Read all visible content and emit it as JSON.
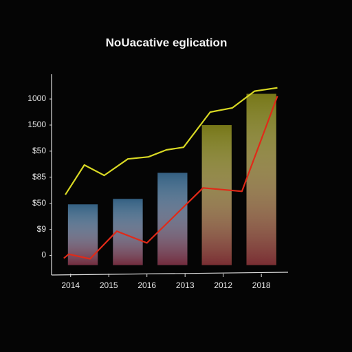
{
  "chart_data": {
    "type": "bar_line",
    "title": "NoUacative eglication",
    "xlim": [
      -0.5,
      5.7
    ],
    "xticks": [
      {
        "value": 0,
        "label": "2014"
      },
      {
        "value": 1,
        "label": "2015"
      },
      {
        "value": 2,
        "label": "2016"
      },
      {
        "value": 3,
        "label": "2013"
      },
      {
        "value": 4,
        "label": "2012"
      },
      {
        "value": 5,
        "label": "2018"
      }
    ],
    "ylim": [
      -0.75,
      6.95
    ],
    "yticks": [
      {
        "value": 0,
        "label": "0"
      },
      {
        "value": 1,
        "label": "$9"
      },
      {
        "value": 2,
        "label": "$50"
      },
      {
        "value": 3,
        "label": "$85"
      },
      {
        "value": 4,
        "label": "$50"
      },
      {
        "value": 5,
        "label": "1500"
      },
      {
        "value": 6,
        "label": "1000"
      }
    ],
    "bars": {
      "x": [
        0.32,
        1.5,
        2.67,
        3.83,
        5.0
      ],
      "values": [
        1.96,
        2.17,
        3.17,
        5.0,
        6.2
      ],
      "width": 0.78,
      "colors": [
        "#3d7199",
        "#3d7199",
        "#3d7199",
        "#8c8c1c",
        "#8c8c1c"
      ]
    },
    "series": [
      {
        "color": "#d9d924",
        "x": [
          -0.14,
          0.36,
          0.88,
          1.5,
          2.04,
          2.51,
          2.96,
          3.66,
          4.24,
          4.82,
          5.42
        ],
        "values": [
          2.33,
          3.47,
          3.07,
          3.7,
          3.78,
          4.05,
          4.15,
          5.5,
          5.66,
          6.3,
          6.43
        ]
      },
      {
        "color": "#e02a18",
        "x": [
          -0.18,
          -0.05,
          0.51,
          1.21,
          2.0,
          3.47,
          4.49,
          5.42
        ],
        "values": [
          -0.11,
          0.05,
          -0.13,
          0.93,
          0.48,
          2.59,
          2.46,
          6.11
        ]
      }
    ]
  }
}
